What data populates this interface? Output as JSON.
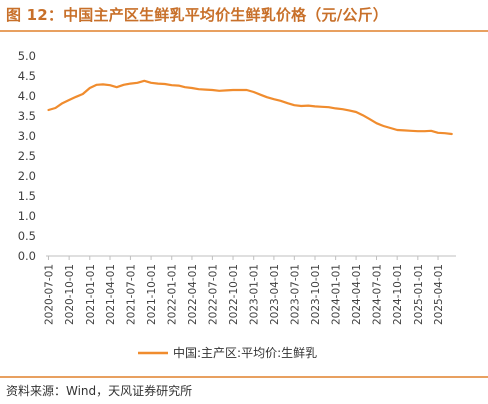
{
  "header": {
    "title": "图 12：中国主产区生鲜乳平均价生鲜乳价格（元/公斤）"
  },
  "footer": {
    "source": "资料来源：Wind，天风证券研究所"
  },
  "colors": {
    "accent": "#E8A060",
    "line": "#F08C2E",
    "title": "#C8702A"
  },
  "chart_data": {
    "type": "line",
    "title": "",
    "xlabel": "",
    "ylabel": "",
    "ylim": [
      0,
      5
    ],
    "yticks": [
      "0.0",
      "0.5",
      "1.0",
      "1.5",
      "2.0",
      "2.5",
      "3.0",
      "3.5",
      "4.0",
      "4.5",
      "5.0"
    ],
    "xticks": [
      "2020-07-01",
      "2020-10-01",
      "2021-01-01",
      "2021-04-01",
      "2021-07-01",
      "2021-10-01",
      "2022-01-01",
      "2022-04-01",
      "2022-07-01",
      "2022-10-01",
      "2023-01-01",
      "2023-04-01",
      "2023-07-01",
      "2023-10-01",
      "2024-01-01",
      "2024-04-01",
      "2024-07-01",
      "2024-10-01",
      "2025-01-01",
      "2025-04-01"
    ],
    "legend_position": "bottom",
    "grid": false,
    "series": [
      {
        "name": "中国:主产区:平均价:生鲜乳",
        "x": [
          "2020-07-01",
          "2020-08-01",
          "2020-09-01",
          "2020-10-01",
          "2020-11-01",
          "2020-12-01",
          "2021-01-01",
          "2021-02-01",
          "2021-03-01",
          "2021-04-01",
          "2021-05-01",
          "2021-06-01",
          "2021-07-01",
          "2021-08-01",
          "2021-09-01",
          "2021-10-01",
          "2021-11-01",
          "2021-12-01",
          "2022-01-01",
          "2022-02-01",
          "2022-03-01",
          "2022-04-01",
          "2022-05-01",
          "2022-06-01",
          "2022-07-01",
          "2022-08-01",
          "2022-09-01",
          "2022-10-01",
          "2022-11-01",
          "2022-12-01",
          "2023-01-01",
          "2023-02-01",
          "2023-03-01",
          "2023-04-01",
          "2023-05-01",
          "2023-06-01",
          "2023-07-01",
          "2023-08-01",
          "2023-09-01",
          "2023-10-01",
          "2023-11-01",
          "2023-12-01",
          "2024-01-01",
          "2024-02-01",
          "2024-03-01",
          "2024-04-01",
          "2024-05-01",
          "2024-06-01",
          "2024-07-01",
          "2024-08-01",
          "2024-09-01",
          "2024-10-01",
          "2024-11-01",
          "2024-12-01",
          "2025-01-01",
          "2025-02-01",
          "2025-03-01",
          "2025-04-01",
          "2025-05-01",
          "2025-06-01"
        ],
        "values": [
          3.65,
          3.7,
          3.82,
          3.9,
          3.98,
          4.05,
          4.2,
          4.28,
          4.29,
          4.27,
          4.22,
          4.28,
          4.31,
          4.33,
          4.38,
          4.33,
          4.31,
          4.3,
          4.27,
          4.26,
          4.22,
          4.2,
          4.17,
          4.16,
          4.15,
          4.13,
          4.14,
          4.15,
          4.15,
          4.15,
          4.1,
          4.03,
          3.97,
          3.92,
          3.88,
          3.82,
          3.77,
          3.75,
          3.76,
          3.74,
          3.73,
          3.72,
          3.69,
          3.67,
          3.64,
          3.6,
          3.52,
          3.42,
          3.32,
          3.25,
          3.2,
          3.15,
          3.14,
          3.13,
          3.12,
          3.12,
          3.13,
          3.08,
          3.07,
          3.05
        ]
      }
    ]
  }
}
